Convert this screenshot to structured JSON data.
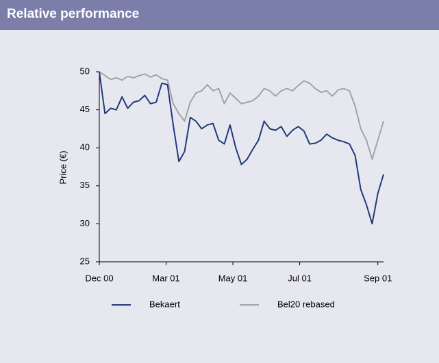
{
  "header": {
    "title": "Relative performance"
  },
  "chart_data": {
    "type": "line",
    "ylabel": "Price (€)",
    "x": [
      0,
      4,
      8,
      12,
      16,
      20,
      24,
      28,
      32,
      36,
      40,
      44,
      48,
      52,
      56,
      60,
      64,
      68,
      72,
      76,
      80,
      84,
      88,
      92,
      96,
      100,
      104,
      108,
      112,
      116,
      120,
      124,
      128,
      132,
      136,
      140,
      144,
      148,
      152,
      156,
      160,
      164,
      168,
      172,
      176,
      180,
      184,
      188,
      192,
      196,
      200
    ],
    "series": [
      {
        "name": "Bekaert",
        "color": "#1f3a7a",
        "values": [
          50,
          44.5,
          45.2,
          45,
          46.7,
          45.2,
          46,
          46.2,
          46.9,
          45.8,
          46,
          48.5,
          48.3,
          43,
          38.2,
          39.5,
          44,
          43.5,
          42.5,
          43,
          43.2,
          41,
          40.5,
          43,
          40,
          37.8,
          38.5,
          39.8,
          41,
          43.5,
          42.5,
          42.3,
          42.8,
          41.5,
          42.3,
          42.8,
          42.2,
          40.5,
          40.6,
          41,
          41.8,
          41.3,
          41,
          40.8,
          40.5,
          39,
          34.5,
          32.5,
          30,
          34,
          36.5
        ]
      },
      {
        "name": "Bel20 rebased",
        "color": "#a3a3a3",
        "values": [
          50,
          49.5,
          49,
          49.2,
          48.9,
          49.4,
          49.2,
          49.5,
          49.7,
          49.3,
          49.6,
          49.1,
          48.9,
          45.8,
          44.5,
          43.5,
          46,
          47.2,
          47.5,
          48.3,
          47.5,
          47.8,
          45.8,
          47.2,
          46.5,
          45.8,
          46,
          46.2,
          46.8,
          47.8,
          47.5,
          46.8,
          47.5,
          47.8,
          47.5,
          48.2,
          48.8,
          48.5,
          47.8,
          47.3,
          47.5,
          46.8,
          47.6,
          47.8,
          47.5,
          45.5,
          42.5,
          41,
          38.5,
          41,
          43.5
        ]
      }
    ],
    "xlim": [
      0,
      200
    ],
    "xticks": [
      {
        "value": 0,
        "label": "Dec 00"
      },
      {
        "value": 47,
        "label": "Mar 01"
      },
      {
        "value": 94,
        "label": "May 01"
      },
      {
        "value": 141,
        "label": "Jul 01"
      },
      {
        "value": 196,
        "label": "Sep 01"
      }
    ],
    "ylim": [
      25,
      50
    ],
    "yticks": [
      25,
      30,
      35,
      40,
      45,
      50
    ]
  }
}
